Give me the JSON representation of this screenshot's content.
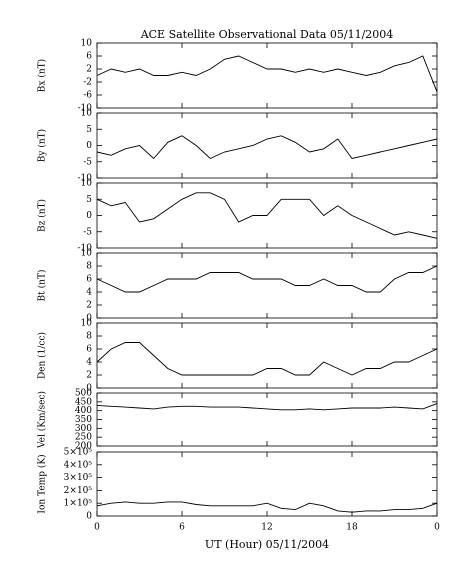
{
  "chart_data": [
    {
      "type": "line",
      "title": "ACE Satellite Observational Data   05/11/2004",
      "ylabel": "Bx (nT)",
      "ylim": [
        -10,
        10
      ],
      "yticks": [
        -10,
        -6,
        -2,
        2,
        6,
        10
      ],
      "x": [
        0,
        1,
        2,
        3,
        4,
        5,
        6,
        7,
        8,
        9,
        10,
        11,
        12,
        13,
        14,
        15,
        16,
        17,
        18,
        19,
        20,
        21,
        22,
        23,
        24
      ],
      "series": [
        {
          "color": "#000000",
          "values": [
            0,
            2,
            1,
            2,
            0,
            0,
            1,
            0,
            2,
            5,
            6,
            4,
            2,
            2,
            1,
            2,
            1,
            2,
            1,
            0,
            1,
            3,
            4,
            6,
            -5
          ]
        }
      ]
    },
    {
      "type": "line",
      "ylabel": "By (nT)",
      "ylim": [
        -10,
        10
      ],
      "yticks": [
        -10,
        -5,
        0,
        5,
        10
      ],
      "x": [
        0,
        1,
        2,
        3,
        4,
        5,
        6,
        7,
        8,
        9,
        10,
        11,
        12,
        13,
        14,
        15,
        16,
        17,
        18,
        19,
        20,
        21,
        22,
        23,
        24
      ],
      "series": [
        {
          "color": "#000000",
          "values": [
            -2,
            -3,
            -1,
            0,
            -4,
            1,
            3,
            0,
            -4,
            -2,
            -1,
            0,
            2,
            3,
            1,
            -2,
            -1,
            2,
            -4,
            -3,
            -2,
            -1,
            0,
            1,
            2
          ]
        }
      ]
    },
    {
      "type": "line",
      "ylabel": "Bz (nT)",
      "ylim": [
        -10,
        10
      ],
      "yticks": [
        -10,
        -5,
        0,
        5,
        10
      ],
      "x": [
        0,
        1,
        2,
        3,
        4,
        5,
        6,
        7,
        8,
        9,
        10,
        11,
        12,
        13,
        14,
        15,
        16,
        17,
        18,
        19,
        20,
        21,
        22,
        23,
        24
      ],
      "series": [
        {
          "color": "#000000",
          "values": [
            5,
            3,
            4,
            -2,
            -1,
            2,
            5,
            7,
            7,
            5,
            -2,
            0,
            0,
            5,
            5,
            5,
            0,
            3,
            0,
            -2,
            -4,
            -6,
            -5,
            -6,
            -7
          ]
        }
      ]
    },
    {
      "type": "line",
      "ylabel": "Bt (nT)",
      "ylim": [
        0,
        10
      ],
      "yticks": [
        0,
        2,
        4,
        6,
        8,
        10
      ],
      "x": [
        0,
        1,
        2,
        3,
        4,
        5,
        6,
        7,
        8,
        9,
        10,
        11,
        12,
        13,
        14,
        15,
        16,
        17,
        18,
        19,
        20,
        21,
        22,
        23,
        24
      ],
      "series": [
        {
          "color": "#000000",
          "values": [
            6,
            5,
            4,
            4,
            5,
            6,
            6,
            6,
            7,
            7,
            7,
            6,
            6,
            6,
            5,
            5,
            6,
            5,
            5,
            4,
            4,
            6,
            7,
            7,
            8
          ]
        }
      ]
    },
    {
      "type": "line",
      "ylabel": "Den (1/cc)",
      "ylim": [
        0,
        10
      ],
      "yticks": [
        0,
        2,
        4,
        6,
        8,
        10
      ],
      "x": [
        0,
        1,
        2,
        3,
        4,
        5,
        6,
        7,
        8,
        9,
        10,
        11,
        12,
        13,
        14,
        15,
        16,
        17,
        18,
        19,
        20,
        21,
        22,
        23,
        24
      ],
      "series": [
        {
          "color": "#000000",
          "values": [
            4,
            6,
            7,
            7,
            5,
            3,
            2,
            2,
            2,
            2,
            2,
            2,
            3,
            3,
            2,
            2,
            4,
            3,
            2,
            3,
            3,
            4,
            4,
            5,
            6
          ]
        }
      ]
    },
    {
      "type": "line",
      "ylabel": "Vel (Km/sec)",
      "ylim": [
        200,
        500
      ],
      "yticks": [
        200,
        250,
        300,
        350,
        400,
        450,
        500
      ],
      "x": [
        0,
        1,
        2,
        3,
        4,
        5,
        6,
        7,
        8,
        9,
        10,
        11,
        12,
        13,
        14,
        15,
        16,
        17,
        18,
        19,
        20,
        21,
        22,
        23,
        24
      ],
      "series": [
        {
          "color": "#000000",
          "values": [
            430,
            425,
            420,
            415,
            410,
            420,
            425,
            425,
            420,
            420,
            420,
            415,
            410,
            405,
            405,
            410,
            405,
            410,
            415,
            415,
            415,
            420,
            415,
            410,
            440
          ]
        }
      ]
    },
    {
      "type": "line",
      "ylabel": "Ion Temp (K)",
      "ylim": [
        0,
        500000
      ],
      "yticks": [
        0,
        {
          "value": 100000,
          "label": "1×10⁵"
        },
        {
          "value": 200000,
          "label": "2×10⁵"
        },
        {
          "value": 300000,
          "label": "3×10⁵"
        },
        {
          "value": 400000,
          "label": "4×10⁵"
        },
        {
          "value": 500000,
          "label": "5×10⁵"
        }
      ],
      "x": [
        0,
        1,
        2,
        3,
        4,
        5,
        6,
        7,
        8,
        9,
        10,
        11,
        12,
        13,
        14,
        15,
        16,
        17,
        18,
        19,
        20,
        21,
        22,
        23,
        24
      ],
      "series": [
        {
          "color": "#000000",
          "values": [
            80000,
            100000,
            110000,
            100000,
            100000,
            110000,
            110000,
            90000,
            80000,
            80000,
            80000,
            80000,
            100000,
            60000,
            50000,
            100000,
            80000,
            40000,
            30000,
            40000,
            40000,
            50000,
            50000,
            60000,
            100000
          ]
        }
      ],
      "xlabel": "UT (Hour)  05/11/2004",
      "xlim": [
        0,
        24
      ],
      "xticks": [
        0,
        6,
        12,
        18,
        {
          "value": 24,
          "label": "0"
        }
      ]
    }
  ]
}
